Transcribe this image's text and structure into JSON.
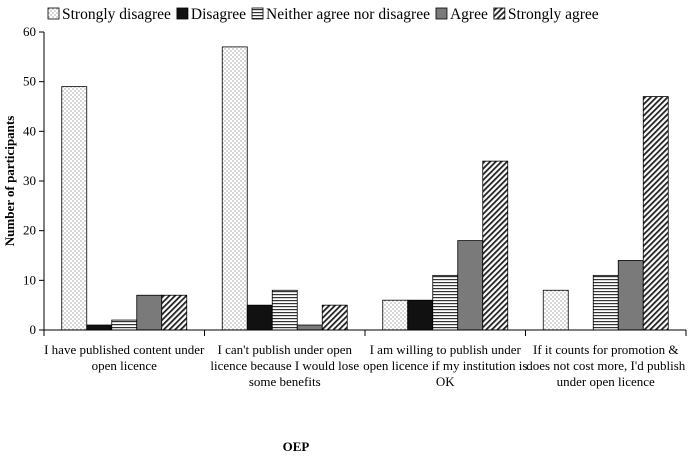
{
  "chart_data": {
    "type": "bar",
    "title": "",
    "xlabel": "OEP",
    "ylabel": "Number of participants",
    "ylim": [
      0,
      60
    ],
    "yticks": [
      0,
      10,
      20,
      30,
      40,
      50,
      60
    ],
    "grid": false,
    "legend_position": "top",
    "categories": [
      [
        "I have published content under",
        "open licence"
      ],
      [
        "I can't publish under open",
        "licence because I would lose",
        "some benefits"
      ],
      [
        "I am willing to publish under",
        "open licence if my institution is",
        "OK"
      ],
      [
        "If it counts for promotion &",
        "does not cost more, I'd publish",
        "under open licence"
      ]
    ],
    "series": [
      {
        "name": "Strongly disagree",
        "pattern": "dots",
        "values": [
          49,
          57,
          6,
          8
        ]
      },
      {
        "name": "Disagree",
        "pattern": "solid-black",
        "values": [
          1,
          5,
          6,
          0
        ]
      },
      {
        "name": "Neither agree nor disagree",
        "pattern": "horizontal-lines",
        "values": [
          2,
          8,
          11,
          11
        ]
      },
      {
        "name": "Agree",
        "pattern": "solid-gray",
        "values": [
          7,
          1,
          18,
          14
        ]
      },
      {
        "name": "Strongly agree",
        "pattern": "diagonal-lines",
        "values": [
          7,
          5,
          34,
          47
        ]
      }
    ]
  }
}
